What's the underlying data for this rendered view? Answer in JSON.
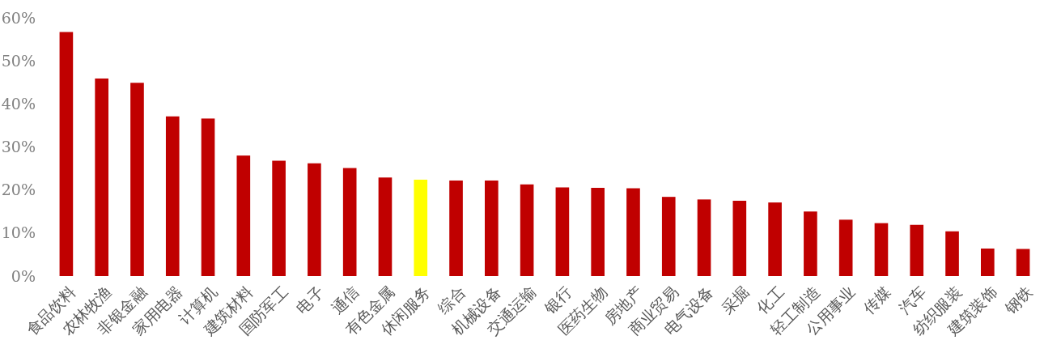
{
  "chart_data": {
    "type": "bar",
    "categories": [
      "食品饮料",
      "农林牧渔",
      "非银金融",
      "家用电器",
      "计算机",
      "建筑材料",
      "国防军工",
      "电子",
      "通信",
      "有色金属",
      "休闲服务",
      "综合",
      "机械设备",
      "交通运输",
      "银行",
      "医药生物",
      "房地产",
      "商业贸易",
      "电气设备",
      "采掘",
      "化工",
      "轻工制造",
      "公用事业",
      "传媒",
      "汽车",
      "纺织服装",
      "建筑装饰",
      "钢铁"
    ],
    "values": [
      56.7,
      45.9,
      44.9,
      37.1,
      36.6,
      28.0,
      26.8,
      26.2,
      25.1,
      22.9,
      22.4,
      22.2,
      22.2,
      21.3,
      20.6,
      20.5,
      20.4,
      18.4,
      17.8,
      17.5,
      17.1,
      15.0,
      13.1,
      12.3,
      11.9,
      10.4,
      6.4,
      6.3
    ],
    "colors": [
      "#c00000",
      "#c00000",
      "#c00000",
      "#c00000",
      "#c00000",
      "#c00000",
      "#c00000",
      "#c00000",
      "#c00000",
      "#c00000",
      "#ffff00",
      "#c00000",
      "#c00000",
      "#c00000",
      "#c00000",
      "#c00000",
      "#c00000",
      "#c00000",
      "#c00000",
      "#c00000",
      "#c00000",
      "#c00000",
      "#c00000",
      "#c00000",
      "#c00000",
      "#c00000",
      "#c00000",
      "#c00000"
    ],
    "ylim": [
      0,
      60
    ],
    "yticks": [
      {
        "value": 0,
        "label": "0%"
      },
      {
        "value": 10,
        "label": "10%"
      },
      {
        "value": 20,
        "label": "20%"
      },
      {
        "value": 30,
        "label": "30%"
      },
      {
        "value": 40,
        "label": "40%"
      },
      {
        "value": 50,
        "label": "50%"
      },
      {
        "value": 60,
        "label": "60%"
      }
    ],
    "grid": false
  }
}
